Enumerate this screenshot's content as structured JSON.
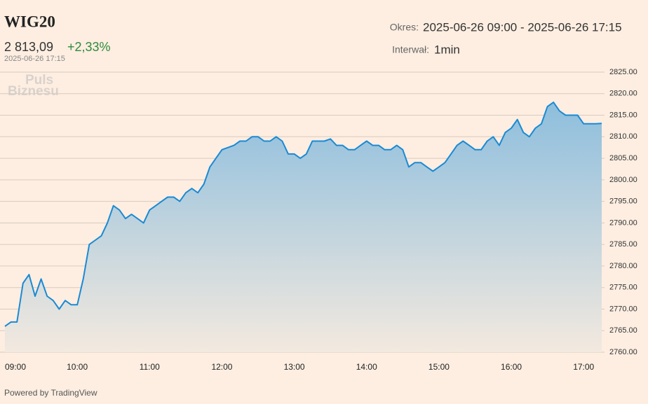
{
  "header": {
    "title": "WIG20",
    "price": "2 813,09",
    "change": "+2,33%",
    "timestamp": "2025-06-26 17:15",
    "period_label": "Okres:",
    "period": "2025-06-26 09:00 - 2025-06-26 17:15",
    "interval_label": "Interwał:",
    "interval": "1min"
  },
  "watermark": [
    "Puls",
    "Biznesu"
  ],
  "footer": "Powered by TradingView",
  "chart_data": {
    "type": "area",
    "color": "#1a8ad4",
    "x": [
      "09:00",
      "09:05",
      "09:10",
      "09:15",
      "09:20",
      "09:25",
      "09:30",
      "09:35",
      "09:40",
      "09:45",
      "09:50",
      "09:55",
      "10:00",
      "10:05",
      "10:10",
      "10:15",
      "10:20",
      "10:25",
      "10:30",
      "10:35",
      "10:40",
      "10:45",
      "10:50",
      "10:55",
      "11:00",
      "11:05",
      "11:10",
      "11:15",
      "11:20",
      "11:25",
      "11:30",
      "11:35",
      "11:40",
      "11:45",
      "11:50",
      "11:55",
      "12:00",
      "12:05",
      "12:10",
      "12:15",
      "12:20",
      "12:25",
      "12:30",
      "12:35",
      "12:40",
      "12:45",
      "12:50",
      "12:55",
      "13:00",
      "13:05",
      "13:10",
      "13:15",
      "13:20",
      "13:25",
      "13:30",
      "13:35",
      "13:40",
      "13:45",
      "13:50",
      "13:55",
      "14:00",
      "14:05",
      "14:10",
      "14:15",
      "14:20",
      "14:25",
      "14:30",
      "14:35",
      "14:40",
      "14:45",
      "14:50",
      "14:55",
      "15:00",
      "15:05",
      "15:10",
      "15:15",
      "15:20",
      "15:25",
      "15:30",
      "15:35",
      "15:40",
      "15:45",
      "15:50",
      "15:55",
      "16:00",
      "16:05",
      "16:10",
      "16:15",
      "16:20",
      "16:25",
      "16:30",
      "16:35",
      "16:40",
      "16:45",
      "16:50",
      "16:55",
      "17:00",
      "17:05",
      "17:10",
      "17:15"
    ],
    "values": [
      2766,
      2767,
      2767,
      2776,
      2778,
      2773,
      2777,
      2773,
      2772,
      2770,
      2772,
      2771,
      2771,
      2777,
      2785,
      2786,
      2787,
      2790,
      2794,
      2793,
      2791,
      2792,
      2791,
      2790,
      2793,
      2794,
      2795,
      2796,
      2796,
      2795,
      2797,
      2798,
      2797,
      2799,
      2803,
      2805,
      2807,
      2807.5,
      2808,
      2809,
      2809,
      2810,
      2810,
      2809,
      2809,
      2810,
      2809,
      2806,
      2806,
      2805,
      2806,
      2809,
      2809,
      2809,
      2809.5,
      2808,
      2808,
      2807,
      2807,
      2808,
      2809,
      2808,
      2808,
      2807,
      2807,
      2808,
      2807,
      2803,
      2804,
      2804,
      2803,
      2802,
      2803,
      2804,
      2806,
      2808,
      2809,
      2808,
      2807,
      2807,
      2809,
      2810,
      2808,
      2811,
      2812,
      2814,
      2811,
      2810,
      2812,
      2813,
      2817,
      2818,
      2816,
      2815,
      2815,
      2815,
      2813,
      2813,
      2813,
      2813.09
    ],
    "xlim": [
      "09:00",
      "17:15"
    ],
    "xticks": [
      "09:00",
      "10:00",
      "11:00",
      "12:00",
      "13:00",
      "14:00",
      "15:00",
      "16:00",
      "17:00"
    ],
    "ylim": [
      2760,
      2825
    ],
    "yticks": [
      {
        "value": 2760,
        "label": "2760.00"
      },
      {
        "value": 2765,
        "label": "2765.00"
      },
      {
        "value": 2770,
        "label": "2770.00"
      },
      {
        "value": 2775,
        "label": "2775.00"
      },
      {
        "value": 2780,
        "label": "2780.00"
      },
      {
        "value": 2785,
        "label": "2785.00"
      },
      {
        "value": 2790,
        "label": "2790.00"
      },
      {
        "value": 2795,
        "label": "2795.00"
      },
      {
        "value": 2800,
        "label": "2800.00"
      },
      {
        "value": 2805,
        "label": "2805.00"
      },
      {
        "value": 2810,
        "label": "2810.00"
      },
      {
        "value": 2815,
        "label": "2815.00"
      },
      {
        "value": 2820,
        "label": "2820.00"
      },
      {
        "value": 2825,
        "label": "2825.00"
      }
    ],
    "grid": true
  }
}
